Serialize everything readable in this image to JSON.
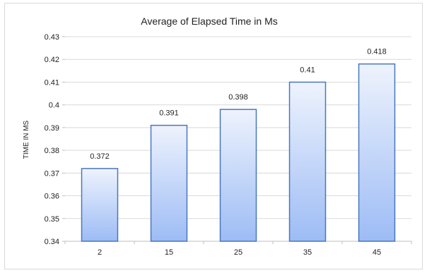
{
  "chart_data": {
    "type": "bar",
    "title": "Average of Elapsed Time in Ms",
    "xlabel": "",
    "ylabel": "TIME IN MS",
    "categories": [
      "2",
      "15",
      "25",
      "35",
      "45"
    ],
    "values": [
      0.372,
      0.391,
      0.398,
      0.41,
      0.418
    ],
    "data_labels": [
      "0.372",
      "0.391",
      "0.398",
      "0.41",
      "0.418"
    ],
    "ylim": [
      0.34,
      0.43
    ],
    "yticks": [
      "0.34",
      "0.35",
      "0.36",
      "0.37",
      "0.38",
      "0.39",
      "0.4",
      "0.41",
      "0.42",
      "0.43"
    ],
    "grid": true,
    "legend": "none",
    "colors": {
      "bar_top": "#eef3fd",
      "bar_bottom": "#9dbcf5",
      "bar_border": "#4a76bd",
      "grid": "#d9d9d9",
      "axis": "#bfbfbf"
    }
  }
}
